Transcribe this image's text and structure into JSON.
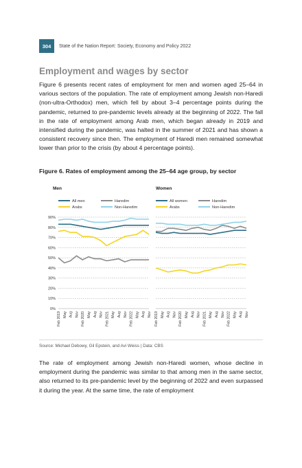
{
  "header": {
    "page_number": "304",
    "running_title": "State of the Nation Report: Society, Economy and Policy 2022"
  },
  "section_title": "Employment and wages by sector",
  "paragraph_1": "Figure 6 presents recent rates of employment for men and women aged 25–64 in various sectors of the population. The rate of employment among Jewish non-Haredi (non-ultra-Orthodox) men, which fell by about 3–4 percentage points during the pandemic, returned to pre-pandemic levels already at the beginning of 2022. The fall in the rate of employment among Arab men, which began already in 2019 and intensified during the pandemic, was halted in the summer of 2021 and has shown a consistent recovery since then. The employment of Haredi men remained somewhat lower than prior to the crisis (by about 4 percentage points).",
  "figure_caption": "Figure 6. Rates of employment among the 25–64 age group, by sector",
  "source": "Source: Michael Debowy, Gil Epstein, and Avi Weiss | Data: CBS",
  "paragraph_2": "The rate of employment among Jewish non-Haredi women, whose decline in employment during the pandemic was similar to that among men in the same sector, also returned to its pre-pandemic level by the beginning of 2022 and even surpassed it during the year. At the same time, the rate of employment",
  "chart_data": [
    {
      "type": "line",
      "title": "Men",
      "categories": [
        "Feb 2019",
        "May",
        "Aug",
        "Nov",
        "Feb 2020",
        "May",
        "Aug",
        "Nov",
        "Feb 2021",
        "May",
        "Aug",
        "Nov",
        "Feb 2022",
        "May",
        "Aug",
        "Nov"
      ],
      "ylim": [
        0,
        90
      ],
      "yticks": [
        "0%",
        "10%",
        "20%",
        "30%",
        "40%",
        "50%",
        "60%",
        "70%",
        "80%",
        "90%"
      ],
      "grid": true,
      "legend_position": "top",
      "series": [
        {
          "name": "All men",
          "color": "#2f6f86",
          "values": [
            83,
            83,
            83,
            82,
            81,
            80,
            79,
            78,
            79,
            80,
            81,
            82,
            82,
            82,
            82,
            82
          ]
        },
        {
          "name": "Haredim",
          "color": "#8c8c8c",
          "values": [
            50,
            45,
            47,
            52,
            48,
            51,
            49,
            49,
            47,
            48,
            49,
            46,
            48,
            48,
            48,
            48
          ]
        },
        {
          "name": "Arabs",
          "color": "#f2d523",
          "values": [
            76,
            77,
            75,
            75,
            71,
            71,
            70,
            67,
            62,
            65,
            68,
            71,
            72,
            73,
            77,
            73
          ]
        },
        {
          "name": "Non-Haredim",
          "color": "#8fd3e6",
          "values": [
            87,
            88,
            88,
            87,
            88,
            86,
            85,
            85,
            85,
            86,
            86,
            87,
            89,
            88,
            88,
            88
          ]
        }
      ]
    },
    {
      "type": "line",
      "title": "Women",
      "categories": [
        "Feb 2019",
        "May",
        "Aug",
        "Nov",
        "Feb 2020",
        "May",
        "Aug",
        "Nov",
        "Feb 2021",
        "May",
        "Aug",
        "Nov",
        "Feb 2022",
        "May",
        "Aug",
        "Nov"
      ],
      "ylim": [
        0,
        90
      ],
      "grid": true,
      "legend_position": "top",
      "series": [
        {
          "name": "All women",
          "color": "#2f6f86",
          "values": [
            75,
            74,
            74,
            75,
            74,
            74,
            74,
            74,
            74,
            73,
            74,
            75,
            76,
            77,
            77,
            77
          ]
        },
        {
          "name": "Haredim",
          "color": "#8c8c8c",
          "values": [
            76,
            76,
            79,
            79,
            78,
            77,
            79,
            80,
            78,
            77,
            79,
            82,
            81,
            79,
            81,
            79
          ]
        },
        {
          "name": "Arabs",
          "color": "#f2d523",
          "values": [
            40,
            38,
            36,
            37,
            38,
            37,
            35,
            35,
            37,
            38,
            40,
            41,
            43,
            43,
            44,
            43
          ]
        },
        {
          "name": "Non-Haredim",
          "color": "#8fd3e6",
          "values": [
            84,
            84,
            83,
            83,
            83,
            82,
            82,
            82,
            83,
            82,
            82,
            83,
            84,
            85,
            85,
            86
          ]
        }
      ]
    }
  ]
}
